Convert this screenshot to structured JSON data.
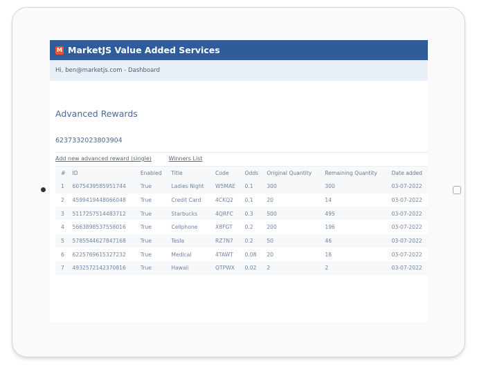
{
  "app": {
    "title": "MarketJS Value Added Services",
    "logo_letter": "M",
    "greeting": "Hi, ben@marketjs.com - Dashboard"
  },
  "page": {
    "title": "Advanced Rewards",
    "campaign_id": "6237332023803904"
  },
  "links": {
    "add": "Add new advanced reward (single)",
    "winners": "Winners List"
  },
  "table": {
    "headers": [
      "#",
      "ID",
      "Enabled",
      "Title",
      "Code",
      "Odds",
      "Original Quantity",
      "Remaining Quantity",
      "Date added"
    ],
    "rows": [
      [
        "1",
        "6075439585951744",
        "True",
        "Ladies Night",
        "W5MAE",
        "0.1",
        "300",
        "300",
        "03-07-2022"
      ],
      [
        "2",
        "4599419448066048",
        "True",
        "Credit Card",
        "4CKQ2",
        "0.1",
        "20",
        "14",
        "03-07-2022"
      ],
      [
        "3",
        "5117257514483712",
        "True",
        "Starbucks",
        "4QRFC",
        "0.3",
        "500",
        "495",
        "03-07-2022"
      ],
      [
        "4",
        "5663898537558016",
        "True",
        "Cellphone",
        "X8FGT",
        "0.2",
        "200",
        "196",
        "03-07-2022"
      ],
      [
        "5",
        "5785544627847168",
        "True",
        "Tesla",
        "RZ7N7",
        "0.2",
        "50",
        "46",
        "03-07-2022"
      ],
      [
        "6",
        "6225769615327232",
        "True",
        "Medical",
        "4TAWT",
        "0.08",
        "20",
        "18",
        "03-07-2022"
      ],
      [
        "7",
        "4932572142370816",
        "True",
        "Hawaii",
        "QTPWX",
        "0.02",
        "2",
        "2",
        "03-07-2022"
      ]
    ]
  },
  "colors": {
    "header": "#2f5d9c",
    "logo": "#e8552c",
    "subheader": "#e9f0f8"
  }
}
